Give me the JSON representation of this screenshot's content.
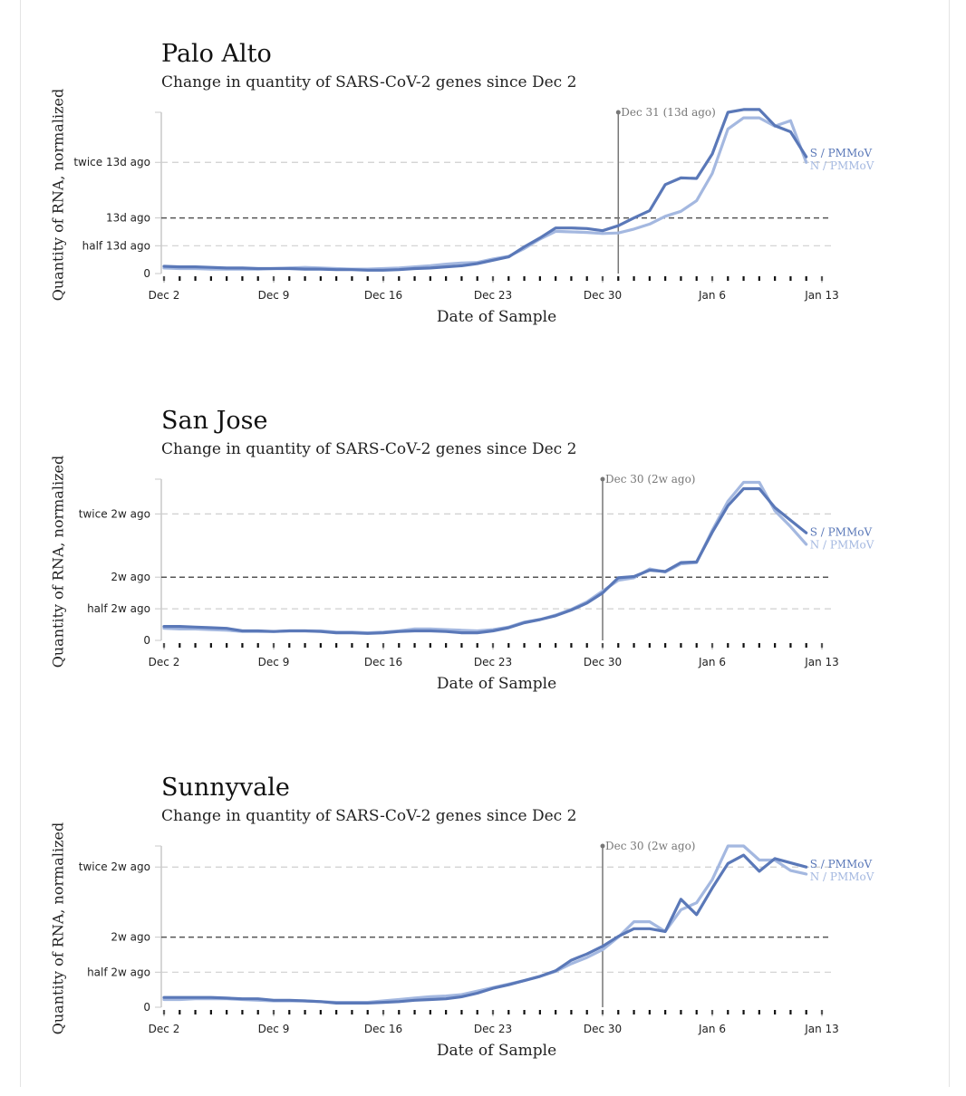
{
  "colors": {
    "s": "#5a78b8",
    "n": "#a4b8e0",
    "ref": "#555555",
    "grid": "#cfcfcf",
    "marker": "#777777"
  },
  "chart_data": [
    {
      "type": "line",
      "title": "Palo Alto",
      "subtitle": "Change in quantity of SARS-CoV-2 genes since Dec 2",
      "ylabel": "Quantity of RNA, normalized",
      "xlabel": "Date of Sample",
      "x_ticks": [
        "Dec 2",
        "Dec 9",
        "Dec 16",
        "Dec 23",
        "Dec 30",
        "Jan 6",
        "Jan 13"
      ],
      "xlim": [
        0,
        42
      ],
      "y_ticks": [
        {
          "value": 0,
          "label": "0"
        },
        {
          "value": 0.5,
          "label": "half 13d ago"
        },
        {
          "value": 1,
          "label": "13d ago"
        },
        {
          "value": 2,
          "label": "twice 13d ago"
        }
      ],
      "ylim": [
        0,
        2.9
      ],
      "reference_level": 1,
      "marker": {
        "x": 29,
        "label": "Dec 31 (13d ago)"
      },
      "grid": true,
      "series": [
        {
          "name": "S / PMMoV",
          "x": [
            0,
            1,
            2,
            3,
            4,
            5,
            6,
            7,
            8,
            9,
            10,
            11,
            12,
            13,
            14,
            15,
            16,
            17,
            18,
            19,
            20,
            21,
            22,
            23,
            24,
            25,
            26,
            27,
            28,
            29,
            30,
            31,
            32,
            33,
            34,
            35,
            36,
            37,
            38,
            39,
            40,
            41
          ],
          "values": [
            0.13,
            0.12,
            0.12,
            0.11,
            0.1,
            0.1,
            0.09,
            0.09,
            0.09,
            0.08,
            0.08,
            0.07,
            0.07,
            0.06,
            0.06,
            0.07,
            0.09,
            0.1,
            0.12,
            0.14,
            0.18,
            0.24,
            0.3,
            0.48,
            0.64,
            0.82,
            0.82,
            0.81,
            0.77,
            0.86,
            1.0,
            1.13,
            1.6,
            1.72,
            1.71,
            2.15,
            2.9,
            2.95,
            2.95,
            2.66,
            2.55,
            2.1
          ]
        },
        {
          "name": "N / PMMoV",
          "x": [
            0,
            1,
            2,
            3,
            4,
            5,
            6,
            7,
            8,
            9,
            10,
            11,
            12,
            13,
            14,
            15,
            16,
            17,
            18,
            19,
            20,
            21,
            22,
            23,
            24,
            25,
            26,
            27,
            28,
            29,
            30,
            31,
            32,
            33,
            34,
            35,
            36,
            37,
            38,
            39,
            40,
            41
          ],
          "values": [
            0.1,
            0.09,
            0.09,
            0.08,
            0.08,
            0.08,
            0.08,
            0.09,
            0.1,
            0.11,
            0.1,
            0.09,
            0.08,
            0.08,
            0.09,
            0.1,
            0.12,
            0.14,
            0.17,
            0.19,
            0.2,
            0.26,
            0.31,
            0.45,
            0.62,
            0.76,
            0.75,
            0.74,
            0.72,
            0.73,
            0.8,
            0.89,
            1.03,
            1.12,
            1.31,
            1.8,
            2.6,
            2.8,
            2.8,
            2.65,
            2.75,
            2.0
          ]
        }
      ]
    },
    {
      "type": "line",
      "title": "San Jose",
      "subtitle": "Change in quantity of SARS-CoV-2 genes since Dec 2",
      "ylabel": "Quantity of RNA, normalized",
      "xlabel": "Date of Sample",
      "x_ticks": [
        "Dec 2",
        "Dec 9",
        "Dec 16",
        "Dec 23",
        "Dec 30",
        "Jan 6",
        "Jan 13"
      ],
      "xlim": [
        0,
        42
      ],
      "y_ticks": [
        {
          "value": 0,
          "label": "0"
        },
        {
          "value": 0.5,
          "label": "half 2w ago"
        },
        {
          "value": 1,
          "label": "2w ago"
        },
        {
          "value": 2,
          "label": "twice 2w ago"
        }
      ],
      "ylim": [
        0,
        2.55
      ],
      "reference_level": 1,
      "marker": {
        "x": 28,
        "label": "Dec 30 (2w ago)"
      },
      "grid": true,
      "series": [
        {
          "name": "S / PMMoV",
          "x": [
            0,
            1,
            2,
            3,
            4,
            5,
            6,
            7,
            8,
            9,
            10,
            11,
            12,
            13,
            14,
            15,
            16,
            17,
            18,
            19,
            20,
            21,
            22,
            23,
            24,
            25,
            26,
            27,
            28,
            29,
            30,
            31,
            32,
            33,
            34,
            35,
            36,
            37,
            38,
            39,
            40,
            41
          ],
          "values": [
            0.22,
            0.22,
            0.21,
            0.2,
            0.19,
            0.15,
            0.15,
            0.14,
            0.15,
            0.15,
            0.14,
            0.12,
            0.12,
            0.11,
            0.12,
            0.14,
            0.15,
            0.15,
            0.14,
            0.12,
            0.12,
            0.15,
            0.2,
            0.28,
            0.33,
            0.39,
            0.48,
            0.59,
            0.75,
            0.99,
            1.01,
            1.11,
            1.09,
            1.23,
            1.24,
            1.71,
            2.13,
            2.4,
            2.4,
            2.1,
            1.9,
            1.7
          ]
        },
        {
          "name": "N / PMMoV",
          "x": [
            0,
            1,
            2,
            3,
            4,
            5,
            6,
            7,
            8,
            9,
            10,
            11,
            12,
            13,
            14,
            15,
            16,
            17,
            18,
            19,
            20,
            21,
            22,
            23,
            24,
            25,
            26,
            27,
            28,
            29,
            30,
            31,
            32,
            33,
            34,
            35,
            36,
            37,
            38,
            39,
            40,
            41
          ],
          "values": [
            0.19,
            0.18,
            0.18,
            0.17,
            0.16,
            0.14,
            0.14,
            0.14,
            0.15,
            0.15,
            0.15,
            0.13,
            0.13,
            0.12,
            0.13,
            0.15,
            0.18,
            0.18,
            0.17,
            0.16,
            0.15,
            0.17,
            0.21,
            0.29,
            0.33,
            0.4,
            0.49,
            0.61,
            0.78,
            0.95,
            0.99,
            1.13,
            1.08,
            1.21,
            1.23,
            1.74,
            2.2,
            2.5,
            2.5,
            2.05,
            1.8,
            1.52
          ]
        }
      ]
    },
    {
      "type": "line",
      "title": "Sunnyvale",
      "subtitle": "Change in quantity of SARS-CoV-2 genes since Dec 2",
      "ylabel": "Quantity of RNA, normalized",
      "xlabel": "Date of Sample",
      "x_ticks": [
        "Dec 2",
        "Dec 9",
        "Dec 16",
        "Dec 23",
        "Dec 30",
        "Jan 6",
        "Jan 13"
      ],
      "xlim": [
        0,
        42
      ],
      "y_ticks": [
        {
          "value": 0,
          "label": "0"
        },
        {
          "value": 0.5,
          "label": "half 2w ago"
        },
        {
          "value": 1,
          "label": "2w ago"
        },
        {
          "value": 2,
          "label": "twice 2w ago"
        }
      ],
      "ylim": [
        0,
        2.3
      ],
      "reference_level": 1,
      "marker": {
        "x": 28,
        "label": "Dec 30 (2w ago)"
      },
      "grid": true,
      "series": [
        {
          "name": "S / PMMoV",
          "x": [
            0,
            1,
            2,
            3,
            4,
            5,
            6,
            7,
            8,
            9,
            10,
            11,
            12,
            13,
            14,
            15,
            16,
            17,
            18,
            19,
            20,
            21,
            22,
            23,
            24,
            25,
            26,
            27,
            28,
            29,
            30,
            31,
            32,
            33,
            34,
            35,
            36,
            37,
            38,
            39,
            40,
            41
          ],
          "values": [
            0.14,
            0.14,
            0.14,
            0.14,
            0.13,
            0.12,
            0.12,
            0.1,
            0.1,
            0.09,
            0.08,
            0.06,
            0.06,
            0.06,
            0.07,
            0.08,
            0.1,
            0.11,
            0.12,
            0.15,
            0.2,
            0.27,
            0.32,
            0.38,
            0.44,
            0.52,
            0.67,
            0.76,
            0.87,
            1.01,
            1.12,
            1.12,
            1.08,
            1.54,
            1.32,
            1.7,
            2.05,
            2.17,
            1.94,
            2.12,
            2.06,
            2.0
          ]
        },
        {
          "name": "N / PMMoV",
          "x": [
            0,
            1,
            2,
            3,
            4,
            5,
            6,
            7,
            8,
            9,
            10,
            11,
            12,
            13,
            14,
            15,
            16,
            17,
            18,
            19,
            20,
            21,
            22,
            23,
            24,
            25,
            26,
            27,
            28,
            29,
            30,
            31,
            32,
            33,
            34,
            35,
            36,
            37,
            38,
            39,
            40,
            41
          ],
          "values": [
            0.11,
            0.11,
            0.12,
            0.12,
            0.12,
            0.11,
            0.1,
            0.09,
            0.09,
            0.09,
            0.08,
            0.07,
            0.07,
            0.07,
            0.09,
            0.11,
            0.13,
            0.15,
            0.16,
            0.18,
            0.23,
            0.28,
            0.33,
            0.38,
            0.44,
            0.51,
            0.62,
            0.71,
            0.82,
            1.0,
            1.22,
            1.22,
            1.08,
            1.39,
            1.49,
            1.82,
            2.3,
            2.3,
            2.1,
            2.1,
            1.95,
            1.9
          ]
        }
      ]
    }
  ]
}
